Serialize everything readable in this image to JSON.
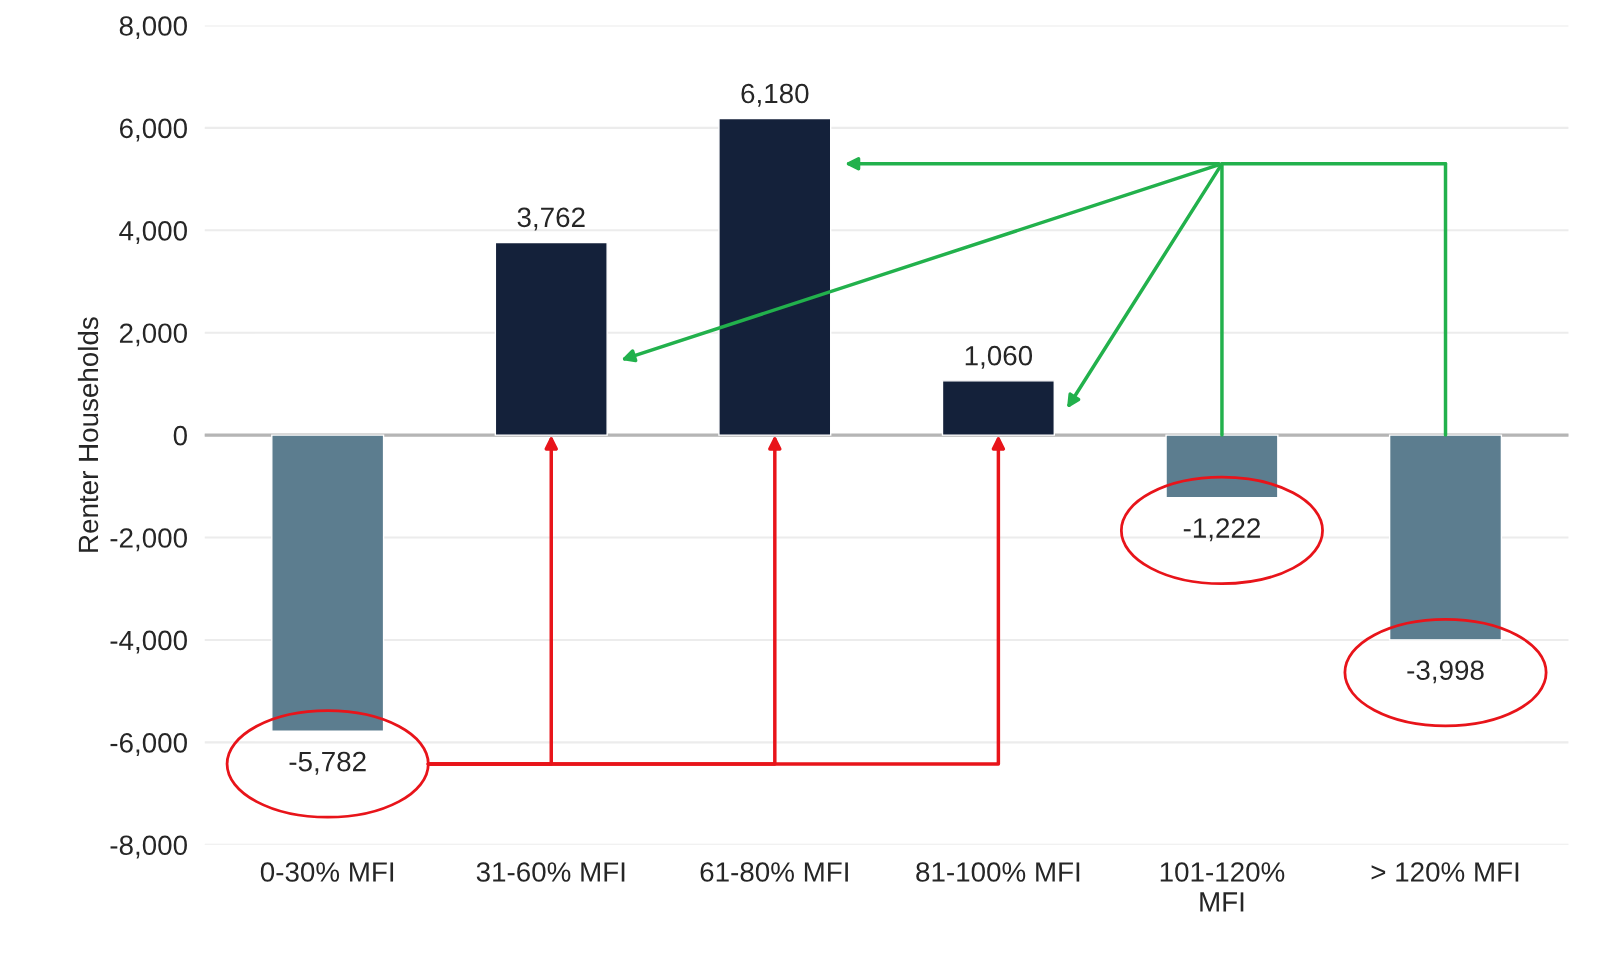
{
  "chart_data": {
    "type": "bar",
    "ylabel": "Renter Households",
    "categories": [
      "0-30% MFI",
      "31-60% MFI",
      "61-80% MFI",
      "81-100% MFI",
      "101-120% MFI",
      "> 120% MFI"
    ],
    "values": [
      -5782,
      3762,
      6180,
      1060,
      -1222,
      -3998
    ],
    "colors": [
      "#5c7d8f",
      "#14213a",
      "#14213a",
      "#14213a",
      "#5c7d8f",
      "#5c7d8f"
    ],
    "value_labels": [
      "-5,782",
      "3,762",
      "6,180",
      "1,060",
      "-1,222",
      "-3,998"
    ],
    "ylim": [
      -8000,
      8000
    ],
    "yticks": [
      {
        "value": -8000,
        "label": "-8,000"
      },
      {
        "value": -6000,
        "label": "-6,000"
      },
      {
        "value": -4000,
        "label": "-4,000"
      },
      {
        "value": -2000,
        "label": "-2,000"
      },
      0,
      {
        "value": 2000,
        "label": "2,000"
      },
      {
        "value": 4000,
        "label": "4,000"
      },
      {
        "value": 6000,
        "label": "6,000"
      },
      {
        "value": 8000,
        "label": "8,000"
      }
    ],
    "grid": "y",
    "legend": false
  }
}
